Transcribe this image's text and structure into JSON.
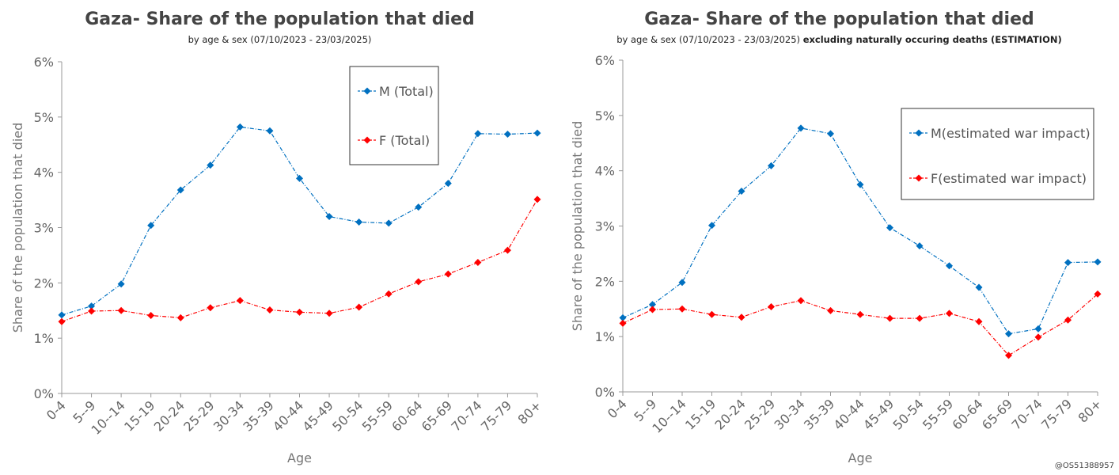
{
  "chart_data": [
    {
      "type": "line",
      "title": "Gaza- Share of the population that died",
      "subtitle": "by age & sex (07/10/2023 - 23/03/2025)",
      "subtitle_bold": "",
      "xlabel": "Age",
      "ylabel": "Share of the population that died",
      "ylim": [
        0,
        6
      ],
      "yticks": [
        "0%",
        "1%",
        "2%",
        "3%",
        "4%",
        "5%",
        "6%"
      ],
      "grid": false,
      "legend_position": "top-right",
      "categories": [
        "0-4",
        "5--9",
        "10--14",
        "15-19",
        "20-24",
        "25-29",
        "30-34",
        "35-39",
        "40-44",
        "45-49",
        "50-54",
        "55-59",
        "60-64",
        "65-69",
        "70-74",
        "75-79",
        "80+"
      ],
      "series": [
        {
          "name": "M (Total)",
          "color": "#0070C0",
          "marker": "diamond",
          "values": [
            1.42,
            1.58,
            1.98,
            3.04,
            3.68,
            4.13,
            4.82,
            4.75,
            3.89,
            3.2,
            3.1,
            3.08,
            3.37,
            3.8,
            4.7,
            4.69,
            4.71
          ]
        },
        {
          "name": "F (Total)",
          "color": "#FF0000",
          "marker": "diamond",
          "values": [
            1.3,
            1.49,
            1.5,
            1.41,
            1.37,
            1.55,
            1.68,
            1.51,
            1.47,
            1.45,
            1.56,
            1.8,
            2.02,
            2.16,
            2.37,
            2.59,
            3.51
          ]
        }
      ]
    },
    {
      "type": "line",
      "title": "Gaza- Share of the population that died",
      "subtitle": "by age & sex (07/10/2023 - 23/03/2025) ",
      "subtitle_bold": "excluding naturally occuring deaths (ESTIMATION)",
      "xlabel": "Age",
      "ylabel": "Share of the population that died",
      "ylim": [
        0,
        6
      ],
      "yticks": [
        "0%",
        "1%",
        "2%",
        "3%",
        "4%",
        "5%",
        "6%"
      ],
      "grid": false,
      "legend_position": "top-right",
      "categories": [
        "0-4",
        "5--9",
        "10--14",
        "15-19",
        "20-24",
        "25-29",
        "30-34",
        "35-39",
        "40-44",
        "45-49",
        "50-54",
        "55-59",
        "60-64",
        "65-69",
        "70-74",
        "75-79",
        "80+"
      ],
      "series": [
        {
          "name": "M(estimated war impact)",
          "color": "#0070C0",
          "marker": "diamond",
          "values": [
            1.34,
            1.58,
            1.98,
            3.01,
            3.63,
            4.09,
            4.77,
            4.67,
            3.75,
            2.97,
            2.64,
            2.28,
            1.89,
            1.05,
            1.14,
            2.34,
            2.35
          ]
        },
        {
          "name": "F(estimated war impact)",
          "color": "#FF0000",
          "marker": "diamond",
          "values": [
            1.24,
            1.49,
            1.5,
            1.4,
            1.35,
            1.54,
            1.65,
            1.47,
            1.4,
            1.33,
            1.33,
            1.42,
            1.27,
            0.66,
            0.99,
            1.3,
            1.77
          ]
        }
      ]
    }
  ],
  "watermark": "@OS51388957"
}
